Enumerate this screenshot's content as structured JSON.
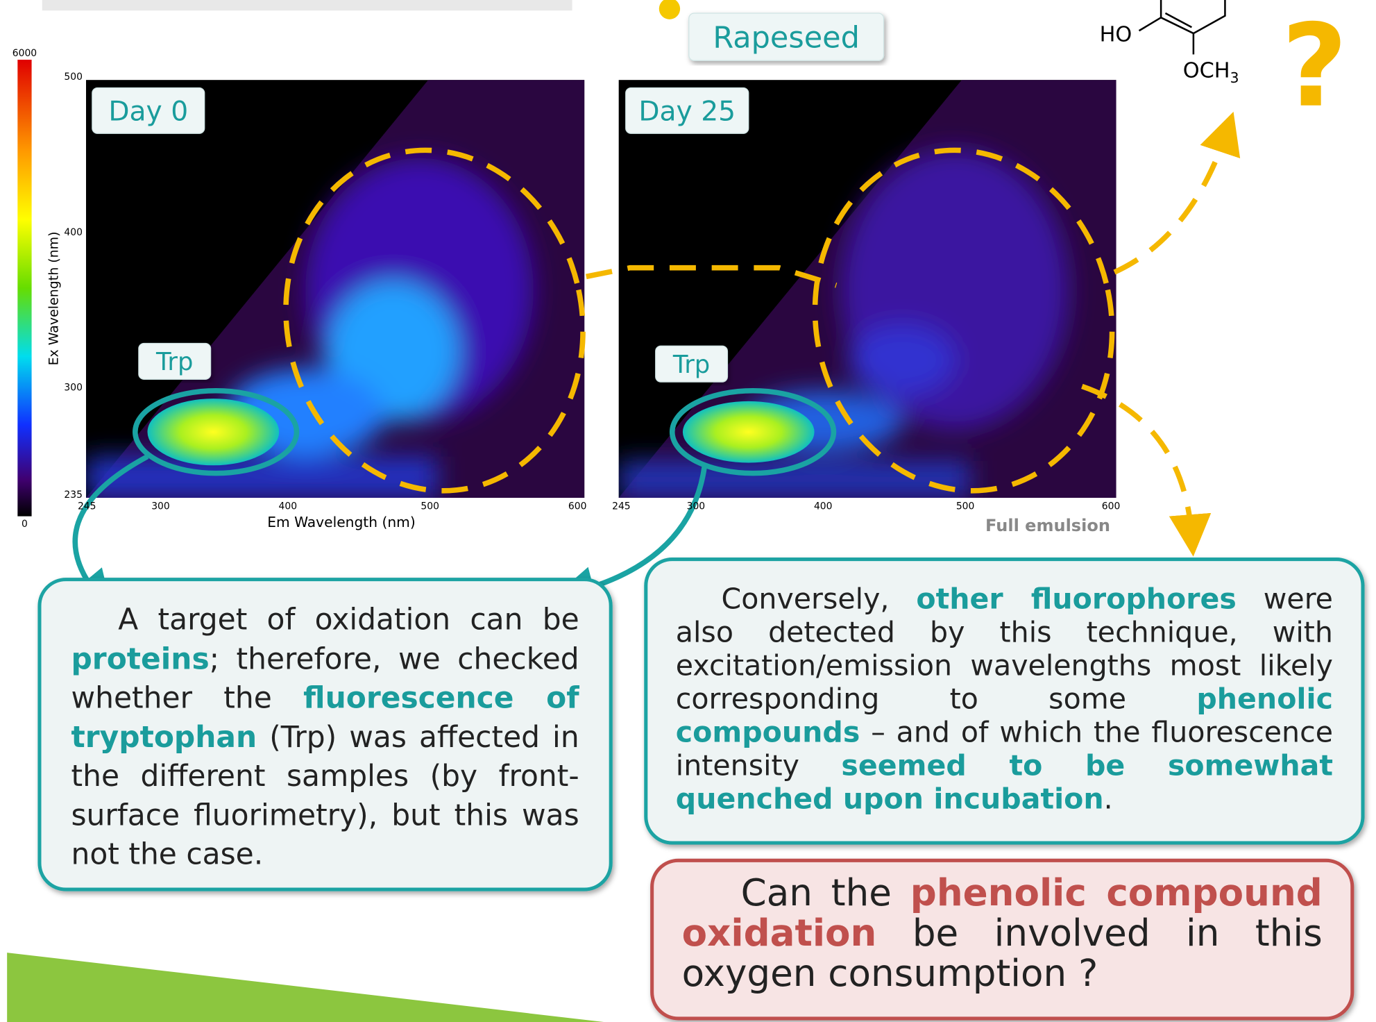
{
  "header": {
    "badge": "Rapeseed"
  },
  "colorbar": {
    "max": "6000",
    "min": "0"
  },
  "plot": {
    "y_label": "Ex Wavelength (nm)",
    "x_label": "Em Wavelength (nm)",
    "yticks": [
      "500",
      "400",
      "300",
      "235"
    ],
    "xticks": [
      "245",
      "300",
      "400",
      "500",
      "600"
    ],
    "caption": "Full emulsion"
  },
  "panels": [
    {
      "label": "Day 0",
      "marker": "Trp"
    },
    {
      "label": "Day 25",
      "marker": "Trp"
    }
  ],
  "structure": {
    "hydroxyl": "HO",
    "methoxy": "OCH",
    "methoxy_sub": "3",
    "question": "?"
  },
  "boxes": [
    {
      "segments": [
        {
          "text": "A target of oxidation can be ",
          "highlight": false
        },
        {
          "text": "proteins",
          "highlight": true
        },
        {
          "text": "; therefore, we checked whether the ",
          "highlight": false
        },
        {
          "text": "fluorescence of tryptophan",
          "highlight": true
        },
        {
          "text": " (Trp) was affected in the different samples (by front-surface fluorimetry), but this was not the case.",
          "highlight": false
        }
      ]
    },
    {
      "segments": [
        {
          "text": "Conversely, ",
          "highlight": false
        },
        {
          "text": "other fluorophores",
          "highlight": true
        },
        {
          "text": " were also detected by this technique, with excitation/emission wavelengths most likely corresponding to some ",
          "highlight": false
        },
        {
          "text": "phenolic compounds",
          "highlight": true
        },
        {
          "text": " – and of which the fluorescence intensity ",
          "highlight": false
        },
        {
          "text": "seemed to be somewhat quenched upon incubation",
          "highlight": true
        },
        {
          "text": ".",
          "highlight": false
        }
      ]
    },
    {
      "segments": [
        {
          "text": "Can the ",
          "highlight": false
        },
        {
          "text": "phenolic compound oxidation",
          "highlight": true
        },
        {
          "text": " be involved in this oxygen consumption ?",
          "highlight": false
        }
      ]
    }
  ]
}
